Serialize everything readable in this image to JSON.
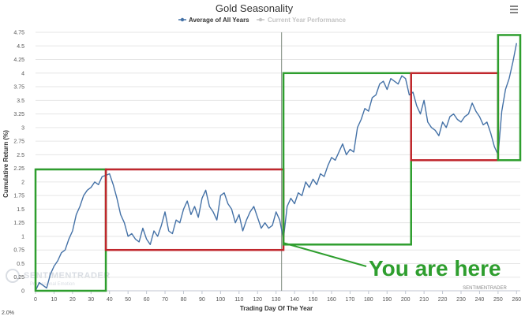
{
  "chart_data": {
    "type": "line",
    "title": "Gold Seasonality",
    "xlabel": "Trading Day Of The Year",
    "ylabel": "Cumulative Return (%)",
    "xlim": [
      0,
      262
    ],
    "ylim": [
      0,
      4.75
    ],
    "x_ticks": [
      "0",
      "10",
      "20",
      "30",
      "40",
      "50",
      "60",
      "70",
      "80",
      "90",
      "100",
      "110",
      "120",
      "130",
      "140",
      "150",
      "160",
      "170",
      "180",
      "190",
      "200",
      "210",
      "220",
      "230",
      "240",
      "250",
      "260"
    ],
    "y_ticks": [
      "0",
      "0.25",
      "0.5",
      "0.75",
      "1",
      "1.25",
      "1.5",
      "1.75",
      "2",
      "2.25",
      "2.5",
      "2.75",
      "3",
      "3.25",
      "3.5",
      "3.75",
      "4",
      "4.25",
      "4.5",
      "4.75"
    ],
    "grid": "horizontal",
    "legend": "top-center",
    "series": [
      {
        "name": "Average of All Years",
        "color": "#4572a7",
        "x": [
          0,
          2,
          4,
          6,
          8,
          10,
          12,
          14,
          16,
          18,
          20,
          22,
          24,
          26,
          28,
          30,
          32,
          34,
          36,
          38,
          40,
          42,
          44,
          46,
          48,
          50,
          52,
          54,
          56,
          58,
          60,
          62,
          64,
          66,
          68,
          70,
          72,
          74,
          76,
          78,
          80,
          82,
          84,
          86,
          88,
          90,
          92,
          94,
          96,
          98,
          100,
          102,
          104,
          106,
          108,
          110,
          112,
          114,
          116,
          118,
          120,
          122,
          124,
          126,
          128,
          130,
          132,
          134,
          136,
          138,
          140,
          142,
          144,
          146,
          148,
          150,
          152,
          154,
          156,
          158,
          160,
          162,
          164,
          166,
          168,
          170,
          172,
          174,
          176,
          178,
          180,
          182,
          184,
          186,
          188,
          190,
          192,
          194,
          196,
          198,
          200,
          202,
          204,
          206,
          208,
          210,
          212,
          214,
          216,
          218,
          220,
          222,
          224,
          226,
          228,
          230,
          232,
          234,
          236,
          238,
          240,
          242,
          244,
          246,
          248,
          250,
          252,
          254,
          256,
          258,
          260
        ],
        "values": [
          0,
          0.15,
          0.1,
          0.05,
          0.3,
          0.45,
          0.55,
          0.7,
          0.75,
          0.95,
          1.1,
          1.4,
          1.55,
          1.75,
          1.85,
          1.9,
          2.0,
          1.95,
          2.1,
          2.12,
          2.15,
          1.95,
          1.7,
          1.4,
          1.25,
          1.0,
          1.05,
          0.95,
          0.9,
          1.15,
          0.95,
          0.85,
          1.1,
          1.0,
          1.2,
          1.45,
          1.1,
          1.05,
          1.3,
          1.25,
          1.5,
          1.65,
          1.4,
          1.55,
          1.35,
          1.7,
          1.85,
          1.55,
          1.45,
          1.3,
          1.75,
          1.8,
          1.6,
          1.5,
          1.25,
          1.4,
          1.1,
          1.3,
          1.45,
          1.55,
          1.35,
          1.15,
          1.25,
          1.15,
          1.2,
          1.45,
          1.3,
          0.95,
          1.55,
          1.7,
          1.6,
          1.8,
          1.75,
          2.0,
          1.9,
          2.05,
          1.95,
          2.15,
          2.1,
          2.3,
          2.45,
          2.4,
          2.55,
          2.7,
          2.5,
          2.6,
          2.55,
          3.0,
          3.15,
          3.35,
          3.3,
          3.55,
          3.6,
          3.8,
          3.85,
          3.7,
          3.9,
          3.85,
          3.8,
          3.95,
          3.9,
          3.6,
          3.65,
          3.4,
          3.25,
          3.5,
          3.1,
          3.0,
          2.95,
          2.85,
          3.1,
          3.0,
          3.2,
          3.25,
          3.15,
          3.1,
          3.2,
          3.25,
          3.45,
          3.3,
          3.2,
          3.05,
          3.1,
          2.9,
          2.65,
          2.5,
          3.3,
          3.7,
          3.9,
          4.2,
          4.55
        ]
      },
      {
        "name": "Current Year Performance",
        "color": "#c4c4c4",
        "x": [],
        "values": []
      }
    ]
  },
  "annotations": {
    "callout": "You are here",
    "credit": "SENTIMENTRADER",
    "watermark_main": "SENTIMENTRADER",
    "watermark_sub": "Professional Emotion",
    "stub_label": "2.0%",
    "box_colors": {
      "green": "#2e9e2e",
      "red": "#c0272d"
    },
    "boxes": [
      {
        "color": "green",
        "x": [
          0,
          38
        ],
        "y": [
          0,
          2.23
        ]
      },
      {
        "color": "red",
        "x": [
          38,
          134
        ],
        "y": [
          0.75,
          2.23
        ]
      },
      {
        "color": "green",
        "x": [
          134,
          203
        ],
        "y": [
          0.85,
          4.0
        ]
      },
      {
        "color": "red",
        "x": [
          203,
          250
        ],
        "y": [
          2.4,
          4.0
        ]
      },
      {
        "color": "green",
        "x": [
          250,
          262
        ],
        "y": [
          2.4,
          4.7
        ]
      }
    ],
    "current_day": 133
  },
  "toolbar": {
    "menu_icon": "hamburger-menu-icon"
  }
}
